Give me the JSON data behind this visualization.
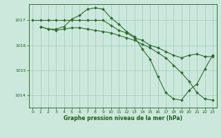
{
  "line1_x": [
    0,
    1,
    2,
    3,
    4,
    5,
    6,
    7,
    8,
    9,
    10,
    11,
    12,
    13,
    14,
    15,
    16,
    17,
    18,
    19,
    20,
    21,
    22,
    23
  ],
  "line1_y": [
    1017.0,
    1017.0,
    1017.0,
    1017.0,
    1017.0,
    1017.0,
    1017.0,
    1017.0,
    1017.0,
    1017.0,
    1016.8,
    1016.6,
    1016.5,
    1016.3,
    1016.2,
    1016.0,
    1015.9,
    1015.75,
    1015.6,
    1015.5,
    1015.6,
    1015.65,
    1015.55,
    1015.55
  ],
  "line2_x": [
    1,
    2,
    3,
    4,
    5,
    6,
    7,
    8,
    9,
    10,
    11,
    12,
    13,
    14,
    15,
    16,
    17,
    18,
    19,
    20,
    21,
    22,
    23
  ],
  "line2_y": [
    1016.75,
    1016.65,
    1016.65,
    1016.75,
    1017.05,
    1017.2,
    1017.45,
    1017.5,
    1017.45,
    1017.1,
    1016.85,
    1016.55,
    1016.35,
    1015.85,
    1015.45,
    1014.75,
    1014.1,
    1013.85,
    1013.8,
    1014.2,
    1014.45,
    1015.05,
    1015.6
  ],
  "line3_x": [
    1,
    2,
    3,
    4,
    5,
    6,
    7,
    8,
    9,
    10,
    11,
    12,
    13,
    14,
    15,
    16,
    17,
    18,
    19,
    20,
    21,
    22,
    23
  ],
  "line3_y": [
    1016.75,
    1016.65,
    1016.6,
    1016.65,
    1016.7,
    1016.7,
    1016.65,
    1016.6,
    1016.55,
    1016.5,
    1016.4,
    1016.3,
    1016.2,
    1016.05,
    1015.9,
    1015.7,
    1015.5,
    1015.2,
    1014.9,
    1014.55,
    1014.1,
    1013.85,
    1013.8
  ],
  "line_color": "#2d6a2d",
  "bg_color": "#cce8dc",
  "grid_color": "#99ccbb",
  "text_color": "#1a5c1a",
  "xlabel": "Graphe pression niveau de la mer (hPa)",
  "ylim": [
    1013.5,
    1017.65
  ],
  "xlim": [
    -0.5,
    23.5
  ],
  "yticks": [
    1014,
    1015,
    1016,
    1017
  ],
  "xticks": [
    0,
    1,
    2,
    3,
    4,
    5,
    6,
    7,
    8,
    9,
    10,
    11,
    12,
    13,
    14,
    15,
    16,
    17,
    18,
    19,
    20,
    21,
    22,
    23
  ]
}
